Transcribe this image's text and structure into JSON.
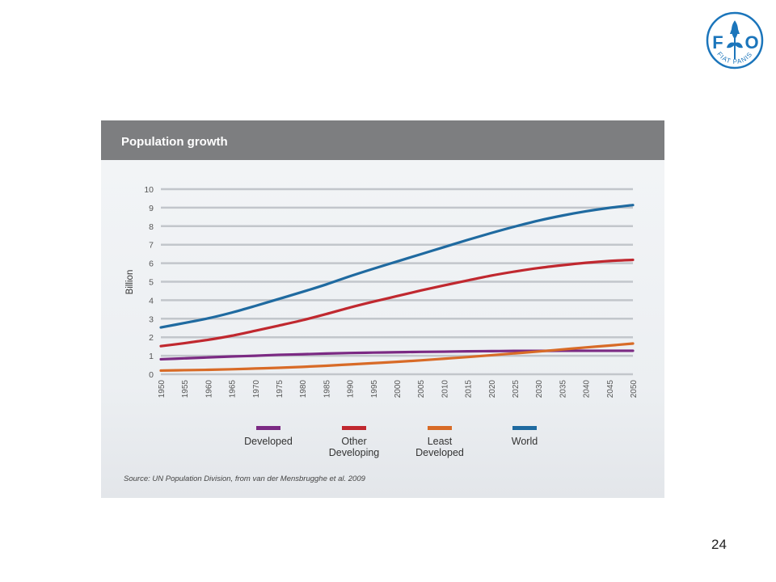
{
  "logo": {
    "letters": [
      "F",
      "A",
      "O"
    ],
    "motto": "FIAT PANIS",
    "color": "#1b75bb"
  },
  "page_number": "24",
  "legend": [
    {
      "name": "Developed",
      "color": "#7b2a83"
    },
    {
      "name": "Other\nDeveloping",
      "color": "#c0282f"
    },
    {
      "name": "Least\nDeveloped",
      "color": "#d86b27"
    },
    {
      "name": "World",
      "color": "#1f6aa0"
    }
  ],
  "chart_data": {
    "type": "line",
    "title": "Population growth",
    "xlabel": "",
    "ylabel": "Billion",
    "source": "Source: UN Population Division, from van der Mensbrugghe et al. 2009",
    "x": [
      1950,
      1955,
      1960,
      1965,
      1970,
      1975,
      1980,
      1985,
      1990,
      1995,
      2000,
      2005,
      2010,
      2015,
      2020,
      2025,
      2030,
      2035,
      2040,
      2045,
      2050
    ],
    "xlim": [
      1950,
      2050
    ],
    "ylim": [
      0,
      10
    ],
    "yticks": [
      0,
      1,
      2,
      3,
      4,
      5,
      6,
      7,
      8,
      9,
      10
    ],
    "grid": true,
    "legend_position": "bottom",
    "series": [
      {
        "name": "Developed",
        "color": "#7b2a83",
        "values": [
          0.81,
          0.86,
          0.91,
          0.96,
          1.0,
          1.05,
          1.08,
          1.12,
          1.15,
          1.17,
          1.19,
          1.21,
          1.22,
          1.24,
          1.25,
          1.26,
          1.26,
          1.27,
          1.27,
          1.27,
          1.27
        ]
      },
      {
        "name": "Other Developing",
        "color": "#c0282f",
        "values": [
          1.52,
          1.68,
          1.86,
          2.08,
          2.35,
          2.63,
          2.92,
          3.25,
          3.6,
          3.92,
          4.22,
          4.52,
          4.8,
          5.07,
          5.33,
          5.55,
          5.74,
          5.89,
          6.02,
          6.12,
          6.18
        ]
      },
      {
        "name": "Least Developed",
        "color": "#d86b27",
        "values": [
          0.2,
          0.22,
          0.24,
          0.27,
          0.31,
          0.35,
          0.4,
          0.46,
          0.53,
          0.6,
          0.67,
          0.75,
          0.84,
          0.93,
          1.03,
          1.13,
          1.23,
          1.34,
          1.45,
          1.55,
          1.66
        ]
      },
      {
        "name": "World",
        "color": "#1f6aa0",
        "values": [
          2.53,
          2.77,
          3.02,
          3.33,
          3.69,
          4.07,
          4.45,
          4.85,
          5.29,
          5.7,
          6.09,
          6.48,
          6.87,
          7.26,
          7.63,
          7.98,
          8.3,
          8.57,
          8.8,
          8.99,
          9.14
        ]
      }
    ]
  }
}
